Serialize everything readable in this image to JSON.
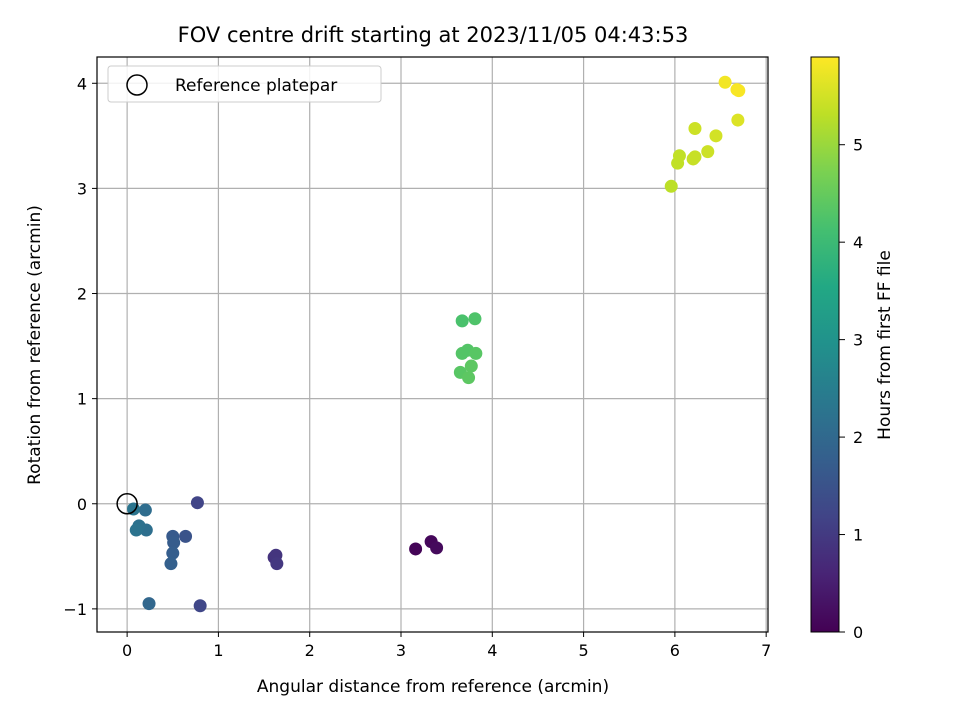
{
  "chart_data": {
    "type": "scatter",
    "title": "FOV centre drift starting at 2023/11/05 04:43:53",
    "xlabel": "Angular distance from reference (arcmin)",
    "ylabel": "Rotation from reference (arcmin)",
    "xlim": [
      -0.33,
      7.02
    ],
    "ylim": [
      -1.22,
      4.25
    ],
    "x_ticks": [
      "0",
      "1",
      "2",
      "3",
      "4",
      "5",
      "6",
      "7"
    ],
    "y_ticks": [
      "−1",
      "0",
      "1",
      "2",
      "3",
      "4"
    ],
    "x_tick_values": [
      0,
      1,
      2,
      3,
      4,
      5,
      6,
      7
    ],
    "y_tick_values": [
      -1,
      0,
      1,
      2,
      3,
      4
    ],
    "grid": true,
    "colormap": "viridis",
    "colorbar": {
      "label": "Hours from first FF file",
      "range": [
        0,
        5.9
      ],
      "ticks": [
        "0",
        "1",
        "2",
        "3",
        "4",
        "5"
      ],
      "tick_values": [
        0,
        1,
        2,
        3,
        4,
        5
      ]
    },
    "legend": {
      "placement": "top-left",
      "entries": [
        {
          "label": "Reference platepar",
          "marker": "open-circle"
        }
      ]
    },
    "reference_point": {
      "x": 0,
      "y": 0
    },
    "points": [
      {
        "x": 3.16,
        "y": -0.43,
        "c": 0.05
      },
      {
        "x": 3.33,
        "y": -0.36,
        "c": 0.1
      },
      {
        "x": 3.39,
        "y": -0.42,
        "c": 0.15
      },
      {
        "x": 1.61,
        "y": -0.51,
        "c": 0.85
      },
      {
        "x": 1.63,
        "y": -0.49,
        "c": 0.9
      },
      {
        "x": 1.64,
        "y": -0.57,
        "c": 0.95
      },
      {
        "x": 0.77,
        "y": 0.01,
        "c": 1.2
      },
      {
        "x": 0.8,
        "y": -0.97,
        "c": 1.25
      },
      {
        "x": 0.64,
        "y": -0.31,
        "c": 1.5
      },
      {
        "x": 0.5,
        "y": -0.31,
        "c": 1.65
      },
      {
        "x": 0.51,
        "y": -0.37,
        "c": 1.7
      },
      {
        "x": 0.5,
        "y": -0.47,
        "c": 1.75
      },
      {
        "x": 0.48,
        "y": -0.57,
        "c": 1.8
      },
      {
        "x": 0.24,
        "y": -0.95,
        "c": 1.95
      },
      {
        "x": 0.2,
        "y": -0.06,
        "c": 2.1
      },
      {
        "x": 0.21,
        "y": -0.25,
        "c": 2.15
      },
      {
        "x": 0.13,
        "y": -0.21,
        "c": 2.2
      },
      {
        "x": 0.1,
        "y": -0.25,
        "c": 2.25
      },
      {
        "x": 0.07,
        "y": -0.05,
        "c": 2.3
      },
      {
        "x": 3.67,
        "y": 1.74,
        "c": 4.2
      },
      {
        "x": 3.81,
        "y": 1.76,
        "c": 4.25
      },
      {
        "x": 3.67,
        "y": 1.43,
        "c": 4.3
      },
      {
        "x": 3.73,
        "y": 1.46,
        "c": 4.3
      },
      {
        "x": 3.82,
        "y": 1.43,
        "c": 4.35
      },
      {
        "x": 3.65,
        "y": 1.25,
        "c": 4.35
      },
      {
        "x": 3.77,
        "y": 1.31,
        "c": 4.4
      },
      {
        "x": 3.74,
        "y": 1.2,
        "c": 4.4
      },
      {
        "x": 5.96,
        "y": 3.02,
        "c": 5.3
      },
      {
        "x": 6.03,
        "y": 3.24,
        "c": 5.35
      },
      {
        "x": 6.05,
        "y": 3.31,
        "c": 5.35
      },
      {
        "x": 6.2,
        "y": 3.28,
        "c": 5.4
      },
      {
        "x": 6.22,
        "y": 3.3,
        "c": 5.4
      },
      {
        "x": 6.36,
        "y": 3.35,
        "c": 5.45
      },
      {
        "x": 6.22,
        "y": 3.57,
        "c": 5.45
      },
      {
        "x": 6.45,
        "y": 3.5,
        "c": 5.5
      },
      {
        "x": 6.69,
        "y": 3.65,
        "c": 5.6
      },
      {
        "x": 6.55,
        "y": 4.01,
        "c": 5.8
      },
      {
        "x": 6.68,
        "y": 3.94,
        "c": 5.85
      },
      {
        "x": 6.7,
        "y": 3.93,
        "c": 5.85
      }
    ]
  }
}
